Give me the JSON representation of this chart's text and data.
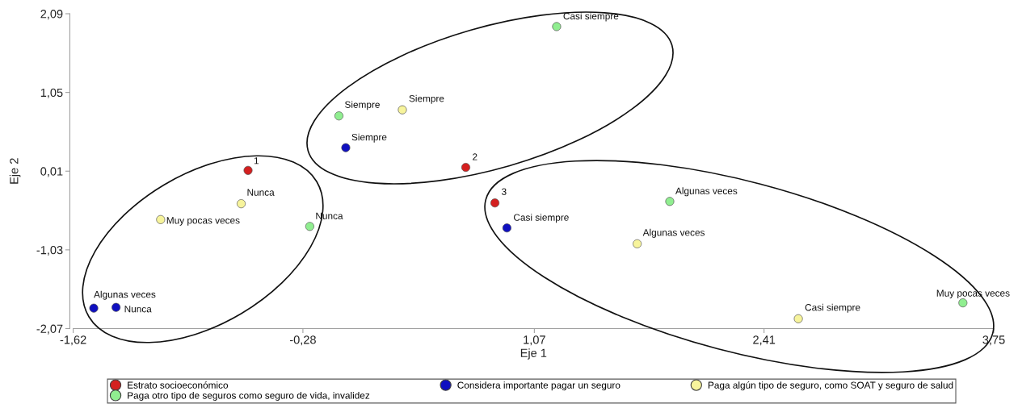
{
  "chart_data": {
    "type": "scatter",
    "xlabel": "Eje 1",
    "ylabel": "Eje 2",
    "legend": "bottom",
    "marker": "circle",
    "xlim": [
      -1.62,
      3.75
    ],
    "ylim": [
      -2.07,
      2.09
    ],
    "xticks": [
      {
        "value": -1.62,
        "label": "-1,62"
      },
      {
        "value": -0.28,
        "label": "-0,28"
      },
      {
        "value": 1.07,
        "label": "1,07"
      },
      {
        "value": 2.41,
        "label": "2,41"
      },
      {
        "value": 3.75,
        "label": "3,75"
      }
    ],
    "yticks": [
      {
        "value": -2.07,
        "label": "-2,07"
      },
      {
        "value": -1.03,
        "label": "-1,03"
      },
      {
        "value": 0.01,
        "label": "0,01"
      },
      {
        "value": 1.05,
        "label": "1,05"
      },
      {
        "value": 2.09,
        "label": "2,09"
      }
    ],
    "series": [
      {
        "name": "Estrato socioeconómico",
        "color": "#d42020",
        "x": [
          -0.6,
          0.67,
          0.84
        ],
        "values": [
          0.02,
          0.06,
          -0.41
        ]
      },
      {
        "name": "Considera importante pagar un seguro",
        "color": "#1010c0",
        "x": [
          -0.03,
          0.91,
          -1.5,
          -1.37
        ],
        "values": [
          0.32,
          -0.74,
          -1.8,
          -1.79
        ]
      },
      {
        "name": "Paga algún tipo de seguro, como SOAT y seguro de salud",
        "color": "#f7f49c",
        "x": [
          0.3,
          2.61,
          1.67,
          -1.11,
          -0.64
        ],
        "values": [
          0.82,
          -1.94,
          -0.95,
          -0.63,
          -0.42
        ]
      },
      {
        "name": "Paga otro tipo de seguros como seguro de vida, invalidez",
        "color": "#90ee90",
        "x": [
          -0.07,
          1.2,
          1.86,
          3.57,
          -0.24
        ],
        "values": [
          0.74,
          1.92,
          -0.39,
          -1.73,
          -0.72
        ]
      }
    ],
    "annotations": [
      {
        "text": "1",
        "x": -0.6,
        "y": 0.02
      },
      {
        "text": "2",
        "x": 0.67,
        "y": 0.06
      },
      {
        "text": "3",
        "x": 0.84,
        "y": -0.41
      },
      {
        "text": "Siempre",
        "x": -0.03,
        "y": 0.32
      },
      {
        "text": "Casi siempre",
        "x": 0.91,
        "y": -0.74
      },
      {
        "text": "Algunas veces",
        "x": -1.5,
        "y": -1.8
      },
      {
        "text": "Nunca",
        "x": -1.37,
        "y": -1.79
      },
      {
        "text": "Siempre",
        "x": 0.3,
        "y": 0.82
      },
      {
        "text": "Casi siempre",
        "x": 2.61,
        "y": -1.94
      },
      {
        "text": "Algunas veces",
        "x": 1.67,
        "y": -0.95
      },
      {
        "text": "Muy pocas veces",
        "x": -1.11,
        "y": -0.63
      },
      {
        "text": "Nunca",
        "x": -0.64,
        "y": -0.42
      },
      {
        "text": "Siempre",
        "x": -0.07,
        "y": 0.74
      },
      {
        "text": "Casi siempre",
        "x": 1.2,
        "y": 1.92
      },
      {
        "text": "Algunas veces",
        "x": 1.86,
        "y": -0.39
      },
      {
        "text": "Muy pocas veces",
        "x": 3.57,
        "y": -1.73
      },
      {
        "text": "Nunca",
        "x": -0.24,
        "y": -0.72
      }
    ]
  }
}
